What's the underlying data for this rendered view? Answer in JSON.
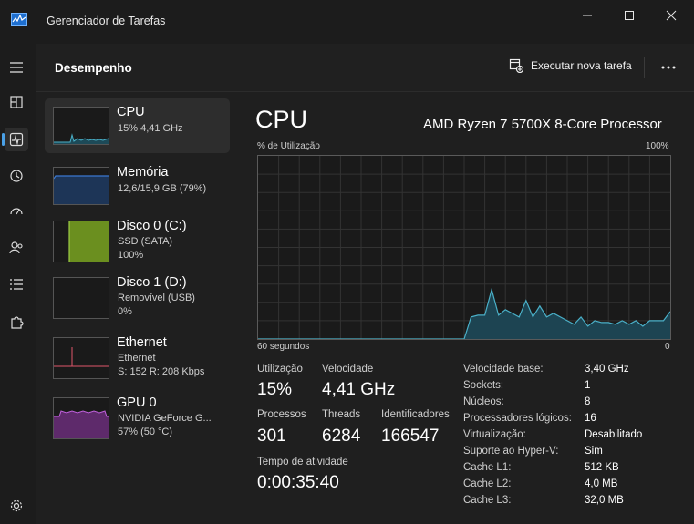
{
  "window": {
    "title": "Gerenciador de Tarefas"
  },
  "header": {
    "title": "Desempenho",
    "run_task_label": "Executar nova tarefa",
    "more_icon": "ellipsis-icon"
  },
  "sidebar": {
    "items": [
      {
        "title": "CPU",
        "line1": "15% 4,41 GHz",
        "line2": "",
        "color": "#4ab0c8"
      },
      {
        "title": "Memória",
        "line1": "12,6/15,9 GB (79%)",
        "line2": "",
        "color": "#3b78d0"
      },
      {
        "title": "Disco 0 (C:)",
        "line1": "SSD (SATA)",
        "line2": "100%",
        "color": "#8bc34a"
      },
      {
        "title": "Disco 1 (D:)",
        "line1": "Removível (USB)",
        "line2": "0%",
        "color": "#8bc34a"
      },
      {
        "title": "Ethernet",
        "line1": "Ethernet",
        "line2": "S: 152 R: 208 Kbps",
        "color": "#e0556b"
      },
      {
        "title": "GPU 0",
        "line1": "NVIDIA GeForce G...",
        "line2": "57% (50 °C)",
        "color": "#b04ac8"
      }
    ]
  },
  "main": {
    "title": "CPU",
    "model": "AMD Ryzen 7 5700X 8-Core Processor",
    "y_label": "% de Utilização",
    "y_max_label": "100%",
    "x_left_label": "60 segundos",
    "x_right_label": "0"
  },
  "stats": {
    "utilizacao_label": "Utilização",
    "utilizacao_value": "15%",
    "velocidade_label": "Velocidade",
    "velocidade_value": "4,41 GHz",
    "processos_label": "Processos",
    "processos_value": "301",
    "threads_label": "Threads",
    "threads_value": "6284",
    "identificadores_label": "Identificadores",
    "identificadores_value": "166547",
    "atividade_label": "Tempo de atividade",
    "atividade_value": "0:00:35:40"
  },
  "details": [
    {
      "label": "Velocidade base:",
      "value": "3,40 GHz"
    },
    {
      "label": "Sockets:",
      "value": "1"
    },
    {
      "label": "Núcleos:",
      "value": "8"
    },
    {
      "label": "Processadores lógicos:",
      "value": "16"
    },
    {
      "label": "Virtualização:",
      "value": "Desabilitado"
    },
    {
      "label": "Suporte ao Hyper-V:",
      "value": "Sim"
    },
    {
      "label": "Cache L1:",
      "value": "512 KB"
    },
    {
      "label": "Cache L2:",
      "value": "4,0 MB"
    },
    {
      "label": "Cache L3:",
      "value": "32,0 MB"
    }
  ],
  "chart_data": {
    "type": "area",
    "title": "",
    "ylabel": "% de Utilização",
    "xlabel": "60 segundos",
    "ylim": [
      0,
      100
    ],
    "xlim": [
      60,
      0
    ],
    "grid": true,
    "series": [
      {
        "x": [
          60,
          58,
          56,
          54,
          52,
          50,
          48,
          46,
          44,
          42,
          40,
          38,
          36,
          34,
          32,
          30,
          29,
          28,
          27,
          26,
          25,
          24,
          23,
          22,
          21,
          20,
          19,
          18,
          17,
          16,
          15,
          14,
          13,
          12,
          11,
          10,
          9,
          8,
          7,
          6,
          5,
          4,
          3,
          2,
          1,
          0
        ],
        "values": [
          0,
          0,
          0,
          0,
          0,
          0,
          0,
          0,
          0,
          0,
          0,
          0,
          0,
          0,
          0,
          0,
          12,
          13,
          13,
          27,
          13,
          16,
          14,
          12,
          21,
          12,
          18,
          12,
          14,
          12,
          10,
          8,
          12,
          7,
          10,
          9,
          9,
          8,
          10,
          8,
          10,
          7,
          10,
          10,
          10,
          15
        ]
      }
    ],
    "color": "#4ab0c8"
  }
}
